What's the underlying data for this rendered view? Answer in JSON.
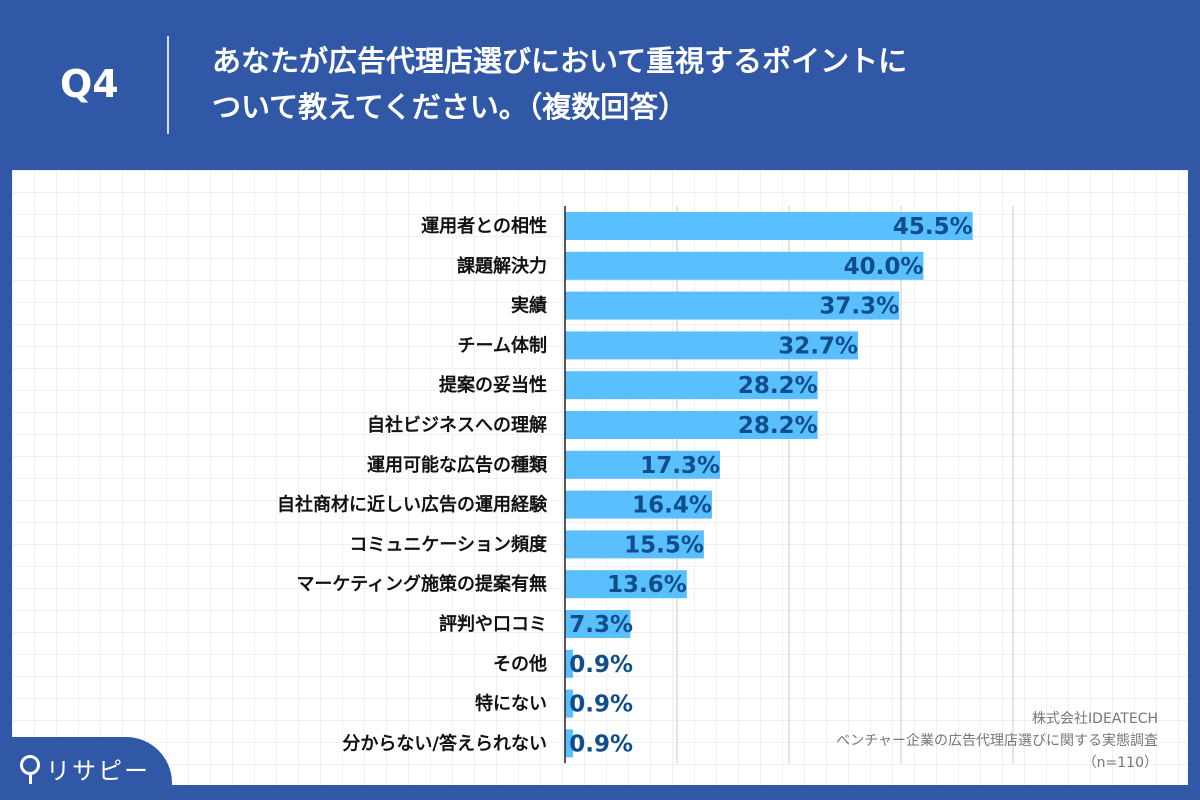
{
  "header": {
    "qnum": "Q4",
    "title_line1": "あなたが広告代理店選びにおいて重視するポイントに",
    "title_line2": "ついて教えてください。（複数回答）"
  },
  "logo": {
    "text": "リサピー"
  },
  "source": {
    "company": "株式会社IDEATECH",
    "survey": "ベンチャー企業の広告代理店選びに関する実態調査",
    "n": "（n=110）"
  },
  "colors": {
    "background": "#3157a7",
    "bar": "#59bfff",
    "value_text": "#0f4e8a"
  },
  "chart_data": {
    "type": "bar",
    "orientation": "horizontal",
    "categories": [
      "運用者との相性",
      "課題解決力",
      "実績",
      "チーム体制",
      "提案の妥当性",
      "自社ビジネスへの理解",
      "運用可能な広告の種類",
      "自社商材に近しい広告の運用経験",
      "コミュニケーション頻度",
      "マーケティング施策の提案有無",
      "評判や口コミ",
      "その他",
      "特にない",
      "分からない/答えられない"
    ],
    "values": [
      45.5,
      40.0,
      37.3,
      32.7,
      28.2,
      28.2,
      17.3,
      16.4,
      15.5,
      13.6,
      7.3,
      0.9,
      0.9,
      0.9
    ],
    "value_labels": [
      "45.5%",
      "40.0%",
      "37.3%",
      "32.7%",
      "28.2%",
      "28.2%",
      "17.3%",
      "16.4%",
      "15.5%",
      "13.6%",
      "7.3%",
      "0.9%",
      "0.9%",
      "0.9%"
    ],
    "xlim": [
      0,
      50
    ],
    "grid": "vertical",
    "grid_step": 12.5,
    "legend": "none"
  }
}
